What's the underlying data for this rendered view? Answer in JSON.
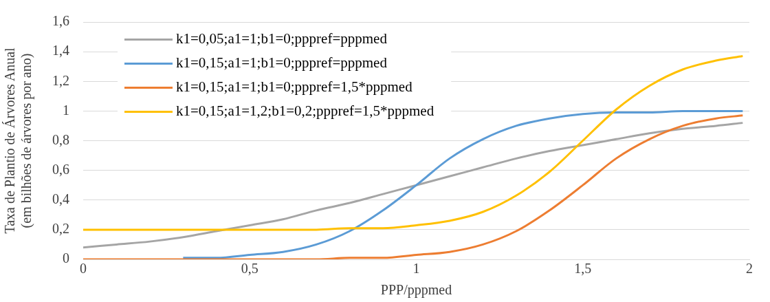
{
  "chart_data": {
    "type": "line",
    "xlabel": "PPP/pppmed",
    "ylabel": "Taxa de Plantio de Árvores Anual\n(em bilhões de árvores por ano)",
    "x": [
      0,
      0.1,
      0.2,
      0.3,
      0.4,
      0.5,
      0.6,
      0.7,
      0.8,
      0.9,
      1.0,
      1.1,
      1.2,
      1.3,
      1.4,
      1.5,
      1.6,
      1.7,
      1.8,
      1.9,
      1.98
    ],
    "series": [
      {
        "name": "k1=0,05;a1=1;b1=0;pppref=pppmed",
        "color": "#a5a5a5",
        "values": [
          0.08,
          0.1,
          0.12,
          0.15,
          0.19,
          0.23,
          0.27,
          0.33,
          0.38,
          0.44,
          0.5,
          0.56,
          0.62,
          0.68,
          0.73,
          0.77,
          0.81,
          0.85,
          0.88,
          0.9,
          0.92
        ]
      },
      {
        "name": "k1=0,15;a1=1;b1=0;pppref=pppmed",
        "color": "#5b9bd5",
        "values": [
          null,
          null,
          null,
          0.01,
          0.01,
          0.03,
          0.05,
          0.1,
          0.19,
          0.33,
          0.5,
          0.68,
          0.81,
          0.9,
          0.95,
          0.98,
          0.99,
          0.99,
          1,
          1,
          1
        ]
      },
      {
        "name": "k1=0,15;a1=1;b1=0;pppref=1,5*pppmed",
        "color": "#ed7d31",
        "values": [
          0,
          0,
          0,
          0,
          0,
          0,
          0,
          0,
          0.01,
          0.01,
          0.03,
          0.05,
          0.1,
          0.19,
          0.33,
          0.5,
          0.68,
          0.81,
          0.9,
          0.95,
          0.97
        ]
      },
      {
        "name": "k1=0,15;a1=1,2;b1=0,2;pppref=1,5*pppmed",
        "color": "#ffc000",
        "values": [
          0.2,
          0.2,
          0.2,
          0.2,
          0.2,
          0.2,
          0.2,
          0.2,
          0.21,
          0.21,
          0.23,
          0.26,
          0.32,
          0.43,
          0.59,
          0.8,
          1.01,
          1.17,
          1.28,
          1.34,
          1.37
        ]
      }
    ],
    "xlim": [
      0,
      2
    ],
    "xticks": [
      0,
      {
        "value": 0.5,
        "label": "0,5"
      },
      1,
      {
        "value": 1.5,
        "label": "1,5"
      },
      2
    ],
    "ylim": [
      0,
      1.6
    ],
    "yticks": [
      0,
      {
        "value": 0.2,
        "label": "0,2"
      },
      {
        "value": 0.4,
        "label": "0,4"
      },
      {
        "value": 0.6,
        "label": "0,6"
      },
      {
        "value": 0.8,
        "label": "0,8"
      },
      1,
      {
        "value": 1.2,
        "label": "1,2"
      },
      {
        "value": 1.4,
        "label": "1,4"
      },
      {
        "value": 1.6,
        "label": "1,6"
      }
    ],
    "grid": "y",
    "legend": "top left",
    "marker": "none",
    "line_style": "solid"
  }
}
